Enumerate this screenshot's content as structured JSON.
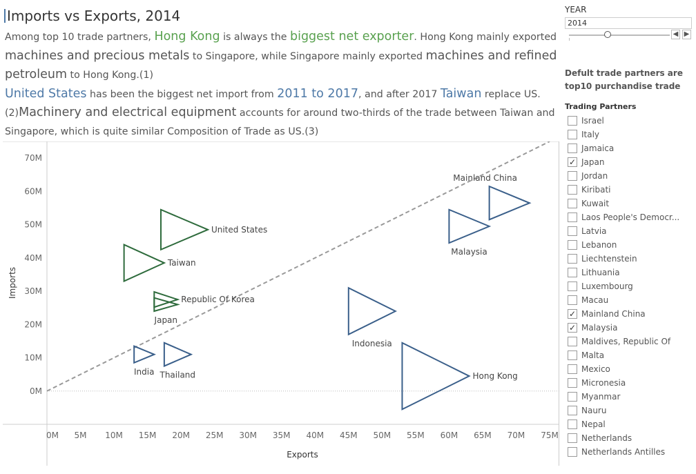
{
  "title": "Imports vs Exports, 2014",
  "description": {
    "p1": [
      {
        "t": "Among top 10 trade partners, ",
        "c": ""
      },
      {
        "t": "Hong Kong",
        "c": "g"
      },
      {
        "t": "  is always the ",
        "c": ""
      },
      {
        "t": "biggest net exporter",
        "c": "g"
      },
      {
        "t": ".  Hong Kong mainly exported ",
        "c": ""
      },
      {
        "t": "machines and precious metals",
        "c": "k"
      },
      {
        "t": "  to Singapore, while Singapore mainly exported ",
        "c": ""
      },
      {
        "t": "machines and refined petroleum",
        "c": "k"
      },
      {
        "t": " to Hong Kong.(1)",
        "c": ""
      }
    ],
    "p2": [
      {
        "t": "United States",
        "c": "b"
      },
      {
        "t": " has been the biggest net import from ",
        "c": ""
      },
      {
        "t": "2011 to 2017",
        "c": "b"
      },
      {
        "t": ", and after 2017 ",
        "c": ""
      },
      {
        "t": "Taiwan",
        "c": "b"
      },
      {
        "t": " replace US.(2)",
        "c": ""
      },
      {
        "t": "Machinery and electrical equipment",
        "c": "k"
      },
      {
        "t": " accounts for around two-thirds of the trade between Taiwan and Singapore, which is quite similar Composition of Trade as US.(3)",
        "c": ""
      }
    ]
  },
  "colors": {
    "net_exporter": "#2e6b3c",
    "net_importer": "#3a5f8a",
    "reference_line": "#999999"
  },
  "chart_data": {
    "type": "scatter",
    "mark": "triangle",
    "xlabel": "Exports",
    "ylabel": "Imports",
    "xlim": [
      0,
      75
    ],
    "ylim": [
      -10,
      75
    ],
    "unit": "M",
    "x_ticks": [
      "0M",
      "5M",
      "10M",
      "15M",
      "20M",
      "25M",
      "30M",
      "35M",
      "40M",
      "45M",
      "50M",
      "55M",
      "60M",
      "65M",
      "70M",
      "75M"
    ],
    "y_ticks": [
      "0M",
      "10M",
      "20M",
      "30M",
      "40M",
      "50M",
      "60M",
      "70M"
    ],
    "reference_line": "x = y",
    "points": [
      {
        "name": "Mainland China",
        "x": 72,
        "y": 56.5,
        "w": 6,
        "h": 5.0,
        "group": "blue",
        "label_pos": "top-left"
      },
      {
        "name": "Malaysia",
        "x": 66,
        "y": 49.5,
        "w": 6,
        "h": 5.0,
        "group": "blue",
        "label_pos": "below"
      },
      {
        "name": "United States",
        "x": 24,
        "y": 48.5,
        "w": 7,
        "h": 6.0,
        "group": "green",
        "label_pos": "right"
      },
      {
        "name": "Taiwan",
        "x": 17.5,
        "y": 38.5,
        "w": 6,
        "h": 5.5,
        "group": "green",
        "label_pos": "right"
      },
      {
        "name": "Republic Of Korea",
        "x": 19.5,
        "y": 27.5,
        "w": 3.5,
        "h": 2.3,
        "group": "green",
        "label_pos": "right"
      },
      {
        "name": "Japan",
        "x": 19.5,
        "y": 26,
        "w": 3.5,
        "h": 2.0,
        "group": "green",
        "label_pos": "below"
      },
      {
        "name": "Indonesia",
        "x": 52,
        "y": 24,
        "w": 7,
        "h": 7.0,
        "group": "blue",
        "label_pos": "below"
      },
      {
        "name": "India",
        "x": 16,
        "y": 11,
        "w": 3,
        "h": 2.5,
        "group": "blue",
        "label_pos": "below"
      },
      {
        "name": "Thailand",
        "x": 21.5,
        "y": 11,
        "w": 4,
        "h": 3.5,
        "group": "blue",
        "label_pos": "below"
      },
      {
        "name": "Hong Kong",
        "x": 63,
        "y": 4.5,
        "w": 10,
        "h": 10.0,
        "group": "blue",
        "label_pos": "right"
      }
    ]
  },
  "sidebar": {
    "year_label": "YEAR",
    "year_value": "2014",
    "step_back": "◀",
    "step_forward": "▶",
    "note": "Defult trade partners are top10 purchandise trade",
    "filter_title": "Trading Partners",
    "partners": [
      {
        "name": "Israel",
        "checked": false
      },
      {
        "name": "Italy",
        "checked": false
      },
      {
        "name": "Jamaica",
        "checked": false
      },
      {
        "name": "Japan",
        "checked": true
      },
      {
        "name": "Jordan",
        "checked": false
      },
      {
        "name": "Kiribati",
        "checked": false
      },
      {
        "name": "Kuwait",
        "checked": false
      },
      {
        "name": "Laos People's Democr...",
        "checked": false
      },
      {
        "name": "Latvia",
        "checked": false
      },
      {
        "name": "Lebanon",
        "checked": false
      },
      {
        "name": "Liechtenstein",
        "checked": false
      },
      {
        "name": "Lithuania",
        "checked": false
      },
      {
        "name": "Luxembourg",
        "checked": false
      },
      {
        "name": "Macau",
        "checked": false
      },
      {
        "name": "Mainland China",
        "checked": true
      },
      {
        "name": "Malaysia",
        "checked": true
      },
      {
        "name": "Maldives, Republic Of",
        "checked": false
      },
      {
        "name": "Malta",
        "checked": false
      },
      {
        "name": "Mexico",
        "checked": false
      },
      {
        "name": "Micronesia",
        "checked": false
      },
      {
        "name": "Myanmar",
        "checked": false
      },
      {
        "name": "Nauru",
        "checked": false
      },
      {
        "name": "Nepal",
        "checked": false
      },
      {
        "name": "Netherlands",
        "checked": false
      },
      {
        "name": "Netherlands Antilles",
        "checked": false
      }
    ]
  }
}
